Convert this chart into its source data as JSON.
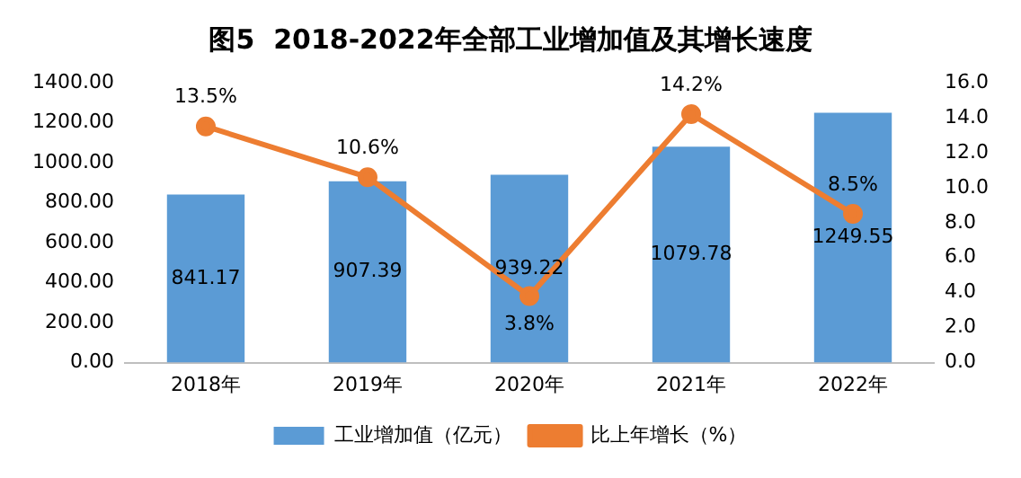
{
  "chart_data": {
    "type": "bar",
    "title": "图5  2018-2022年全部工业增加值及其增长速度",
    "categories": [
      "2018年",
      "2019年",
      "2020年",
      "2021年",
      "2022年"
    ],
    "series": [
      {
        "name": "工业增加值（亿元）",
        "color": "#5b9bd5",
        "values": [
          841.17,
          907.39,
          939.22,
          1079.78,
          1249.55
        ],
        "value_labels": [
          "841.17",
          "907.39",
          "939.22",
          "1079.78",
          "1249.55"
        ]
      },
      {
        "name": "比上年增长（%）",
        "type": "line",
        "axis": "y2",
        "color": "#ed7d31",
        "values": [
          13.5,
          10.6,
          3.8,
          14.2,
          8.5
        ],
        "value_labels": [
          "13.5%",
          "10.6%",
          "3.8%",
          "14.2%",
          "8.5%"
        ]
      }
    ],
    "ylim": [
      0,
      1400
    ],
    "yticks": [
      {
        "value": 0,
        "label": "0.00"
      },
      {
        "value": 200,
        "label": "200.00"
      },
      {
        "value": 400,
        "label": "400.00"
      },
      {
        "value": 600,
        "label": "600.00"
      },
      {
        "value": 800,
        "label": "800.00"
      },
      {
        "value": 1000,
        "label": "1000.00"
      },
      {
        "value": 1200,
        "label": "1200.00"
      },
      {
        "value": 1400,
        "label": "1400.00"
      }
    ],
    "y2lim": [
      0,
      16
    ],
    "y2ticks": [
      {
        "value": 0,
        "label": "0.0"
      },
      {
        "value": 2,
        "label": "2.0"
      },
      {
        "value": 4,
        "label": "4.0"
      },
      {
        "value": 6,
        "label": "6.0"
      },
      {
        "value": 8,
        "label": "8.0"
      },
      {
        "value": 10,
        "label": "10.0"
      },
      {
        "value": 12,
        "label": "12.0"
      },
      {
        "value": 14,
        "label": "14.0"
      },
      {
        "value": 16,
        "label": "16.0"
      }
    ],
    "legend": "bottom",
    "marker": "circle",
    "line_style": "solid"
  }
}
